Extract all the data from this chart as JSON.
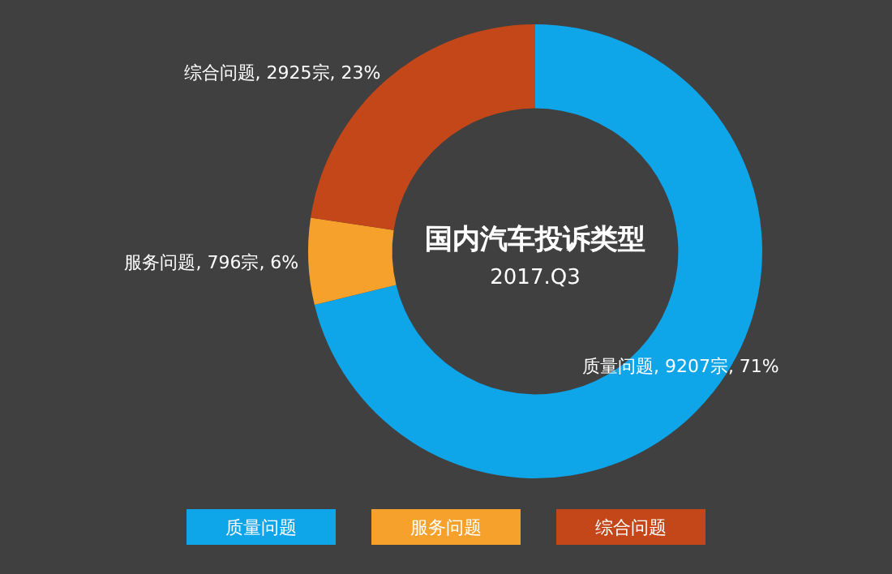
{
  "chart_data": {
    "type": "donut",
    "title": "国内汽车投诉类型",
    "subtitle": "2017.Q3",
    "categories": [
      "质量问题",
      "服务问题",
      "综合问题"
    ],
    "values": [
      9207,
      796,
      2925
    ],
    "colors": [
      "#0ea5e9",
      "#f5a12c",
      "#c4471a"
    ],
    "value_labels": [
      "质量问题, 9207宗, 71%",
      "服务问题, 796宗, 6%",
      "综合问题, 2925宗, 23%"
    ],
    "legend": "bottom"
  }
}
